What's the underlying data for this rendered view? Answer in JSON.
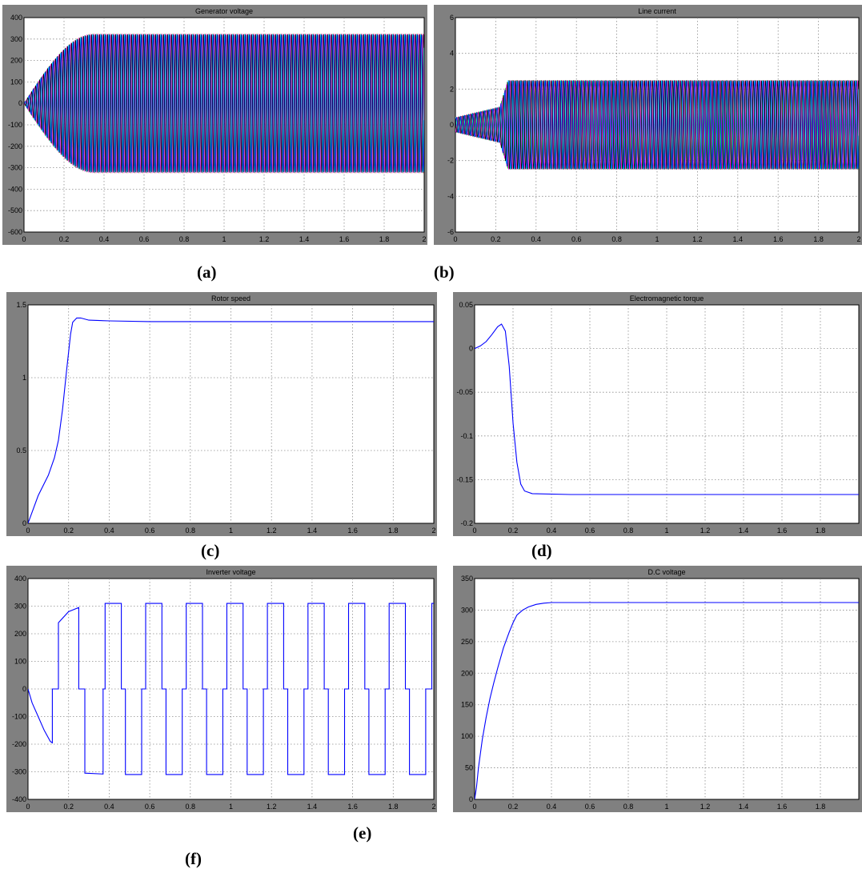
{
  "colors": {
    "frame": "#808080",
    "plot_bg": "#ffffff",
    "grid": "#8c8c8c",
    "series_blue": "#0000ff",
    "phase_colors": [
      "#ff0000",
      "#ffff00",
      "#00c000",
      "#00ffff",
      "#ff00ff",
      "#0000ff",
      "#000000"
    ]
  },
  "captions": {
    "a": "(a)",
    "b": "(b)",
    "c": "(c)",
    "d": "(d)",
    "e": "(e)",
    "f": "(f)"
  },
  "chart_data": [
    {
      "id": "a",
      "type": "line",
      "title": "Generator voltage",
      "xlabel": "",
      "ylabel": "",
      "xlim": [
        0,
        2
      ],
      "ylim": [
        -600,
        400
      ],
      "xticks": [
        0,
        0.2,
        0.4,
        0.6,
        0.8,
        1,
        1.2,
        1.4,
        1.6,
        1.8,
        2
      ],
      "yticks": [
        -600,
        -500,
        -400,
        -300,
        -200,
        -100,
        0,
        100,
        200,
        300,
        400
      ],
      "grid": true,
      "series": [
        {
          "phase": "three-phase",
          "ramp_end_s": 0.35,
          "amplitude": 325
        }
      ]
    },
    {
      "id": "b",
      "type": "line",
      "title": "Line current",
      "xlabel": "",
      "ylabel": "",
      "xlim": [
        0,
        2
      ],
      "ylim": [
        -6,
        6
      ],
      "xticks": [
        0,
        0.2,
        0.4,
        0.6,
        0.8,
        1,
        1.2,
        1.4,
        1.6,
        1.8,
        2
      ],
      "yticks": [
        -6,
        -4,
        -2,
        0,
        2,
        4,
        6
      ],
      "grid": true,
      "series": [
        {
          "phase": "three-phase",
          "initial_amplitude": 1.0,
          "jump_at_s": 0.22,
          "amplitude": 2.5
        }
      ]
    },
    {
      "id": "c",
      "type": "line",
      "title": "Rotor speed",
      "xlabel": "",
      "ylabel": "",
      "xlim": [
        0,
        2
      ],
      "ylim": [
        0,
        1.5
      ],
      "xticks": [
        0,
        0.2,
        0.4,
        0.6,
        0.8,
        1,
        1.2,
        1.4,
        1.6,
        1.8,
        2
      ],
      "yticks": [
        0,
        0.5,
        1,
        1.5
      ],
      "grid": true,
      "series": [
        {
          "x": [
            0,
            0.05,
            0.1,
            0.13,
            0.15,
            0.17,
            0.19,
            0.21,
            0.22,
            0.24,
            0.26,
            0.3,
            0.4,
            0.6,
            1,
            1.5,
            2
          ],
          "y": [
            0,
            0.19,
            0.33,
            0.45,
            0.57,
            0.78,
            1.05,
            1.3,
            1.38,
            1.41,
            1.41,
            1.395,
            1.39,
            1.385,
            1.385,
            1.385,
            1.385
          ]
        }
      ]
    },
    {
      "id": "d",
      "type": "line",
      "title": "Electromagnetic torque",
      "xlabel": "",
      "ylabel": "",
      "xlim": [
        0,
        2
      ],
      "ylim": [
        -0.2,
        0.05
      ],
      "xticks": [
        0,
        0.2,
        0.4,
        0.6,
        0.8,
        1,
        1.2,
        1.4,
        1.6,
        1.8
      ],
      "yticks": [
        -0.2,
        -0.15,
        -0.1,
        -0.05,
        0,
        0.05
      ],
      "grid": true,
      "series": [
        {
          "x": [
            0,
            0.03,
            0.06,
            0.09,
            0.12,
            0.14,
            0.16,
            0.18,
            0.2,
            0.22,
            0.24,
            0.26,
            0.3,
            0.5,
            1,
            1.5,
            2
          ],
          "y": [
            0,
            0.003,
            0.008,
            0.016,
            0.025,
            0.028,
            0.02,
            -0.02,
            -0.085,
            -0.13,
            -0.155,
            -0.163,
            -0.166,
            -0.167,
            -0.167,
            -0.167,
            -0.167
          ]
        }
      ]
    },
    {
      "id": "e",
      "type": "line",
      "title": "Inverter voltage",
      "xlabel": "",
      "ylabel": "",
      "xlim": [
        0,
        2
      ],
      "ylim": [
        -400,
        400
      ],
      "xticks": [
        0,
        0.2,
        0.4,
        0.6,
        0.8,
        1,
        1.2,
        1.4,
        1.6,
        1.8,
        2
      ],
      "yticks": [
        -400,
        -300,
        -200,
        -100,
        0,
        100,
        200,
        300,
        400
      ],
      "grid": true,
      "series": [
        {
          "x": [
            0,
            0.02,
            0.05,
            0.08,
            0.11,
            0.12,
            0.12,
            0.15,
            0.15,
            0.2,
            0.25,
            0.25,
            0.28,
            0.28,
            0.37,
            0.37,
            0.38,
            0.38,
            0.46,
            0.46,
            0.48,
            0.48,
            0.56,
            0.56,
            0.58,
            0.58,
            0.66,
            0.66,
            0.68,
            0.68,
            0.76,
            0.76,
            0.78,
            0.78,
            0.86,
            0.86,
            0.88,
            0.88,
            0.96,
            0.96,
            0.98,
            0.98,
            1.06,
            1.06,
            1.08,
            1.08,
            1.16,
            1.16,
            1.18,
            1.18,
            1.26,
            1.26,
            1.28,
            1.28,
            1.36,
            1.36,
            1.38,
            1.38,
            1.46,
            1.46,
            1.48,
            1.48,
            1.56,
            1.56,
            1.58,
            1.58,
            1.66,
            1.66,
            1.68,
            1.68,
            1.76,
            1.76,
            1.78,
            1.78,
            1.86,
            1.86,
            1.88,
            1.88,
            1.96,
            1.96,
            1.99,
            1.99,
            2
          ],
          "y": [
            0,
            -50,
            -100,
            -150,
            -190,
            -195,
            0,
            0,
            240,
            280,
            295,
            0,
            0,
            -305,
            -308,
            0,
            0,
            310,
            310,
            0,
            0,
            -310,
            -310,
            0,
            0,
            310,
            310,
            0,
            0,
            -310,
            -310,
            0,
            0,
            310,
            310,
            0,
            0,
            -310,
            -310,
            0,
            0,
            310,
            310,
            0,
            0,
            -310,
            -310,
            0,
            0,
            310,
            310,
            0,
            0,
            -310,
            -310,
            0,
            0,
            310,
            310,
            0,
            0,
            -310,
            -310,
            0,
            0,
            310,
            310,
            0,
            0,
            -310,
            -310,
            0,
            0,
            310,
            310,
            0,
            0,
            -310,
            -310,
            0,
            0,
            310,
            310
          ]
        }
      ]
    },
    {
      "id": "f",
      "type": "line",
      "title": "D.C voltage",
      "xlabel": "",
      "ylabel": "",
      "xlim": [
        0,
        2
      ],
      "ylim": [
        0,
        350
      ],
      "xticks": [
        0,
        0.2,
        0.4,
        0.6,
        0.8,
        1,
        1.2,
        1.4,
        1.6,
        1.8
      ],
      "yticks": [
        0,
        50,
        100,
        150,
        200,
        250,
        300,
        350
      ],
      "grid": true,
      "series": [
        {
          "x": [
            0,
            0.01,
            0.02,
            0.04,
            0.06,
            0.08,
            0.1,
            0.12,
            0.15,
            0.18,
            0.2,
            0.22,
            0.25,
            0.28,
            0.32,
            0.36,
            0.4,
            0.5,
            0.7,
            1,
            1.5,
            2
          ],
          "y": [
            0,
            20,
            50,
            95,
            130,
            160,
            185,
            208,
            240,
            265,
            280,
            292,
            300,
            305,
            309,
            311,
            312,
            312,
            312,
            312,
            312,
            312
          ]
        }
      ]
    }
  ]
}
